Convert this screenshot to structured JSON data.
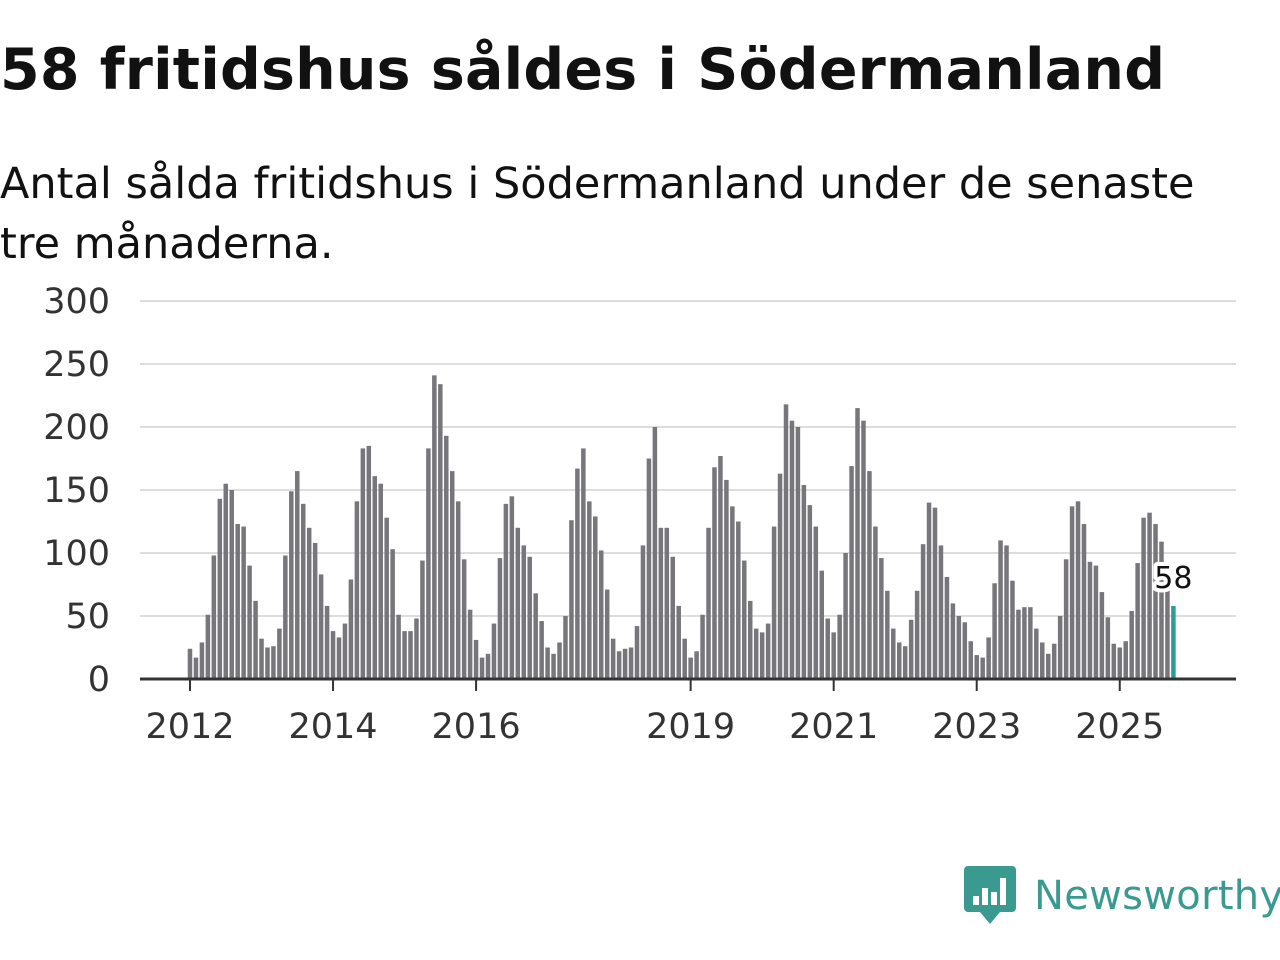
{
  "title": "58 fritidshus såldes i Södermanland",
  "subtitle": "Antal sålda fritidshus i Södermanland under de senaste tre månaderna.",
  "brand": {
    "name": "Newsworthy",
    "color": "#3a9a90",
    "icon": "newsworthy-logo-icon"
  },
  "colors": {
    "bar": "#77767a",
    "highlight": "#2a9d94",
    "grid": "#dddddd",
    "axis": "#333333"
  },
  "chart_data": {
    "type": "bar",
    "title": "58 fritidshus såldes i Södermanland",
    "xlabel": "",
    "ylabel": "",
    "ylim": [
      0,
      300
    ],
    "yticks": [
      0,
      50,
      100,
      150,
      200,
      250,
      300
    ],
    "grid": true,
    "x_start": "2012-01",
    "frequency": "monthly",
    "xticks": [
      {
        "label": "2012",
        "month_index": 0
      },
      {
        "label": "2014",
        "month_index": 24
      },
      {
        "label": "2016",
        "month_index": 48
      },
      {
        "label": "2019",
        "month_index": 84
      },
      {
        "label": "2021",
        "month_index": 108
      },
      {
        "label": "2023",
        "month_index": 132
      },
      {
        "label": "2025",
        "month_index": 156
      }
    ],
    "values": [
      24,
      17,
      29,
      51,
      98,
      143,
      155,
      150,
      123,
      121,
      90,
      62,
      32,
      25,
      26,
      40,
      98,
      149,
      165,
      139,
      120,
      108,
      83,
      58,
      38,
      33,
      44,
      79,
      141,
      183,
      185,
      161,
      155,
      128,
      103,
      51,
      38,
      38,
      48,
      94,
      183,
      241,
      234,
      193,
      165,
      141,
      95,
      55,
      31,
      17,
      20,
      44,
      96,
      139,
      145,
      120,
      106,
      97,
      68,
      46,
      25,
      20,
      29,
      50,
      126,
      167,
      183,
      141,
      129,
      102,
      71,
      32,
      22,
      24,
      25,
      42,
      106,
      175,
      200,
      120,
      120,
      97,
      58,
      32,
      17,
      22,
      51,
      120,
      168,
      177,
      158,
      137,
      125,
      94,
      62,
      40,
      37,
      44,
      121,
      163,
      218,
      205,
      200,
      154,
      138,
      121,
      86,
      48,
      37,
      51,
      100,
      169,
      215,
      205,
      165,
      121,
      96,
      70,
      40,
      29,
      26,
      47,
      70,
      107,
      140,
      136,
      106,
      81,
      60,
      50,
      45,
      30,
      19,
      17,
      33,
      76,
      110,
      106,
      78,
      55,
      57,
      57,
      40,
      29,
      20,
      28,
      50,
      95,
      137,
      141,
      123,
      93,
      90,
      69,
      49,
      28,
      25,
      30,
      54,
      92,
      128,
      132,
      123,
      109,
      78,
      58
    ],
    "highlight_last": true,
    "annotation": {
      "label": "58",
      "value": 58
    }
  }
}
